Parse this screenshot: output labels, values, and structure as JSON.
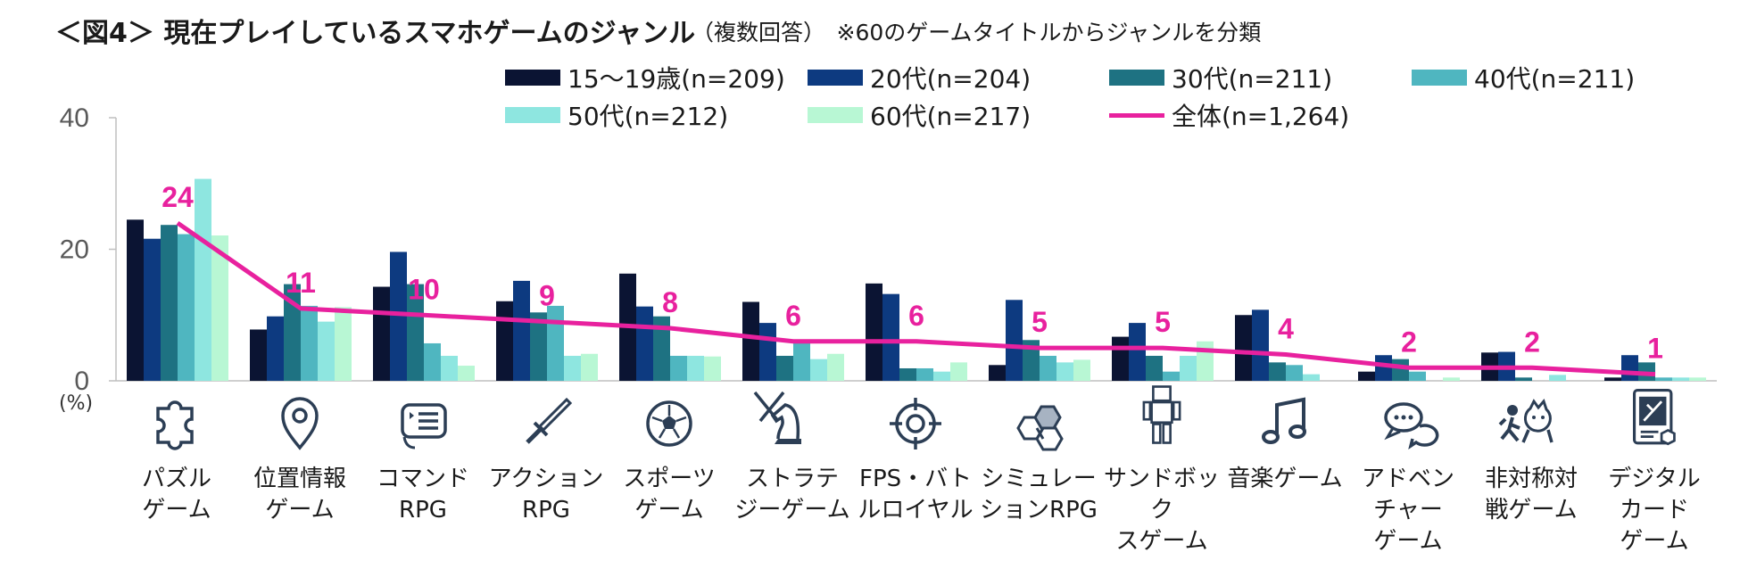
{
  "title": "＜図4＞ 現在プレイしているスマホゲームのジャンル",
  "subtitle": "（複数回答）　※60のゲームタイトルからジャンルを分類",
  "unit_label": "(%)",
  "chart_data": {
    "type": "bar",
    "combo_line_series": "全体(n=1,264)",
    "ylim": [
      0,
      40
    ],
    "yticks": [
      0,
      20,
      40
    ],
    "categories": [
      "パズル\nゲーム",
      "位置情報\nゲーム",
      "コマンド\nRPG",
      "アクション\nRPG",
      "スポーツ\nゲーム",
      "ストラテ\nジーゲーム",
      "FPS・バト\nルロイヤル",
      "シミュレー\nションRPG",
      "サンドボック\nスゲーム",
      "音楽ゲーム",
      "アドベン\nチャー\nゲーム",
      "非対称対\n戦ゲーム",
      "デジタル\nカード\nゲーム"
    ],
    "series": [
      {
        "name": "15～19歳(n=209)",
        "color": "#0b1433",
        "values": [
          24.5,
          7.8,
          14.3,
          12.1,
          16.3,
          12.0,
          14.8,
          2.4,
          6.7,
          10.0,
          1.4,
          4.3,
          0.5
        ]
      },
      {
        "name": "20代(n=204)",
        "color": "#0d3a80",
        "values": [
          21.6,
          9.8,
          19.6,
          15.2,
          11.3,
          8.8,
          13.2,
          12.3,
          8.8,
          10.8,
          3.9,
          4.4,
          3.9
        ]
      },
      {
        "name": "30代(n=211)",
        "color": "#1e7282",
        "values": [
          23.7,
          14.7,
          14.7,
          10.4,
          9.8,
          3.8,
          1.9,
          6.2,
          3.8,
          2.8,
          3.3,
          0.5,
          2.8
        ]
      },
      {
        "name": "40代(n=211)",
        "color": "#4fb6c0",
        "values": [
          22.3,
          11.4,
          5.7,
          11.4,
          3.8,
          5.7,
          1.9,
          3.8,
          1.4,
          2.4,
          1.4,
          0.0,
          0.5
        ]
      },
      {
        "name": "50代(n=212)",
        "color": "#8ee6e0",
        "values": [
          30.7,
          9.0,
          3.8,
          3.8,
          3.8,
          3.3,
          1.4,
          2.8,
          3.8,
          1.0,
          0.0,
          0.9,
          0.5
        ]
      },
      {
        "name": "60代(n=217)",
        "color": "#b8f7d4",
        "values": [
          22.1,
          11.2,
          2.3,
          4.1,
          3.7,
          4.1,
          2.8,
          3.2,
          6.0,
          0.0,
          0.5,
          0.0,
          0.5
        ]
      }
    ],
    "line": {
      "name": "全体(n=1,264)",
      "color": "#e8219e",
      "values": [
        24,
        11,
        10,
        9,
        8,
        6,
        6,
        5,
        5,
        4,
        2,
        2,
        1
      ]
    },
    "data_labels": [
      "24",
      "11",
      "10",
      "9",
      "8",
      "6",
      "6",
      "5",
      "5",
      "4",
      "2",
      "2",
      "1"
    ],
    "icons": [
      "puzzle-icon",
      "map-pin-icon",
      "command-menu-icon",
      "sword-icon",
      "soccer-ball-icon",
      "chess-knight-icon",
      "crosshair-icon",
      "hexagon-cluster-icon",
      "blocky-character-icon",
      "music-note-icon",
      "chat-bubbles-icon",
      "chase-figures-icon",
      "card-icon"
    ]
  }
}
